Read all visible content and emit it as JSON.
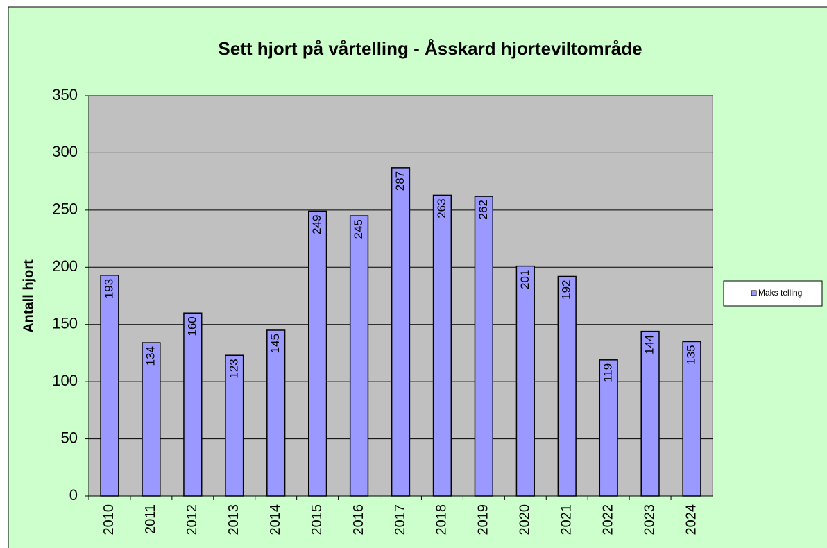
{
  "chart_data": {
    "type": "bar",
    "title": "Sett hjort på vårtelling - Åsskard hjorteviltområde",
    "y_label": "Antall hjort",
    "categories": [
      "2010",
      "2011",
      "2012",
      "2013",
      "2014",
      "2015",
      "2016",
      "2017",
      "2018",
      "2019",
      "2020",
      "2021",
      "2022",
      "2023",
      "2024"
    ],
    "series": [
      {
        "name": "Maks telling",
        "color": "#9999ff",
        "values": [
          193,
          134,
          160,
          123,
          145,
          249,
          245,
          287,
          263,
          262,
          201,
          192,
          119,
          144,
          135
        ]
      }
    ],
    "ylim": [
      0,
      350
    ],
    "yticks": [
      0,
      50,
      100,
      150,
      200,
      250,
      300,
      350
    ],
    "grid": true,
    "legend": "right"
  }
}
